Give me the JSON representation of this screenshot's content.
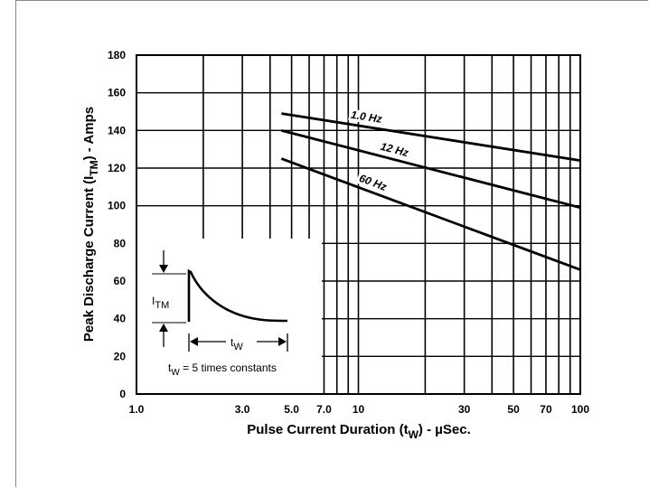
{
  "chart_data": {
    "type": "line",
    "x_scale": "log",
    "xlim": [
      1,
      100
    ],
    "ylim": [
      0,
      180
    ],
    "grid": true,
    "xlabel_main": "Pulse Current Duration (t",
    "xlabel_sub": "W",
    "xlabel_tail": ") - µSec.",
    "ylabel_main": "Peak Discharge Current (I",
    "ylabel_sub": "TM",
    "ylabel_tail": ") - Amps",
    "x_ticks": [
      {
        "value": 1,
        "label": "1.0"
      },
      {
        "value": 3,
        "label": "3.0"
      },
      {
        "value": 5,
        "label": "5.0"
      },
      {
        "value": 7,
        "label": "7.0"
      },
      {
        "value": 10,
        "label": "10"
      },
      {
        "value": 30,
        "label": "30"
      },
      {
        "value": 50,
        "label": "50"
      },
      {
        "value": 70,
        "label": "70"
      },
      {
        "value": 100,
        "label": "100"
      }
    ],
    "y_ticks": [
      0,
      20,
      40,
      60,
      80,
      100,
      120,
      140,
      160,
      180
    ],
    "series": [
      {
        "name": "1.0 Hz",
        "x": [
          4.5,
          100
        ],
        "y": [
          149,
          124
        ]
      },
      {
        "name": "12 Hz",
        "x": [
          4.5,
          100
        ],
        "y": [
          140,
          99
        ]
      },
      {
        "name": "60 Hz",
        "x": [
          4.5,
          100
        ],
        "y": [
          125,
          66
        ]
      }
    ],
    "inset": {
      "itm_main": "I",
      "itm_sub": "TM",
      "tw_main": "t",
      "tw_sub": "W",
      "caption_main": "t",
      "caption_sub": "W",
      "caption_tail": " = 5 times constants"
    }
  }
}
